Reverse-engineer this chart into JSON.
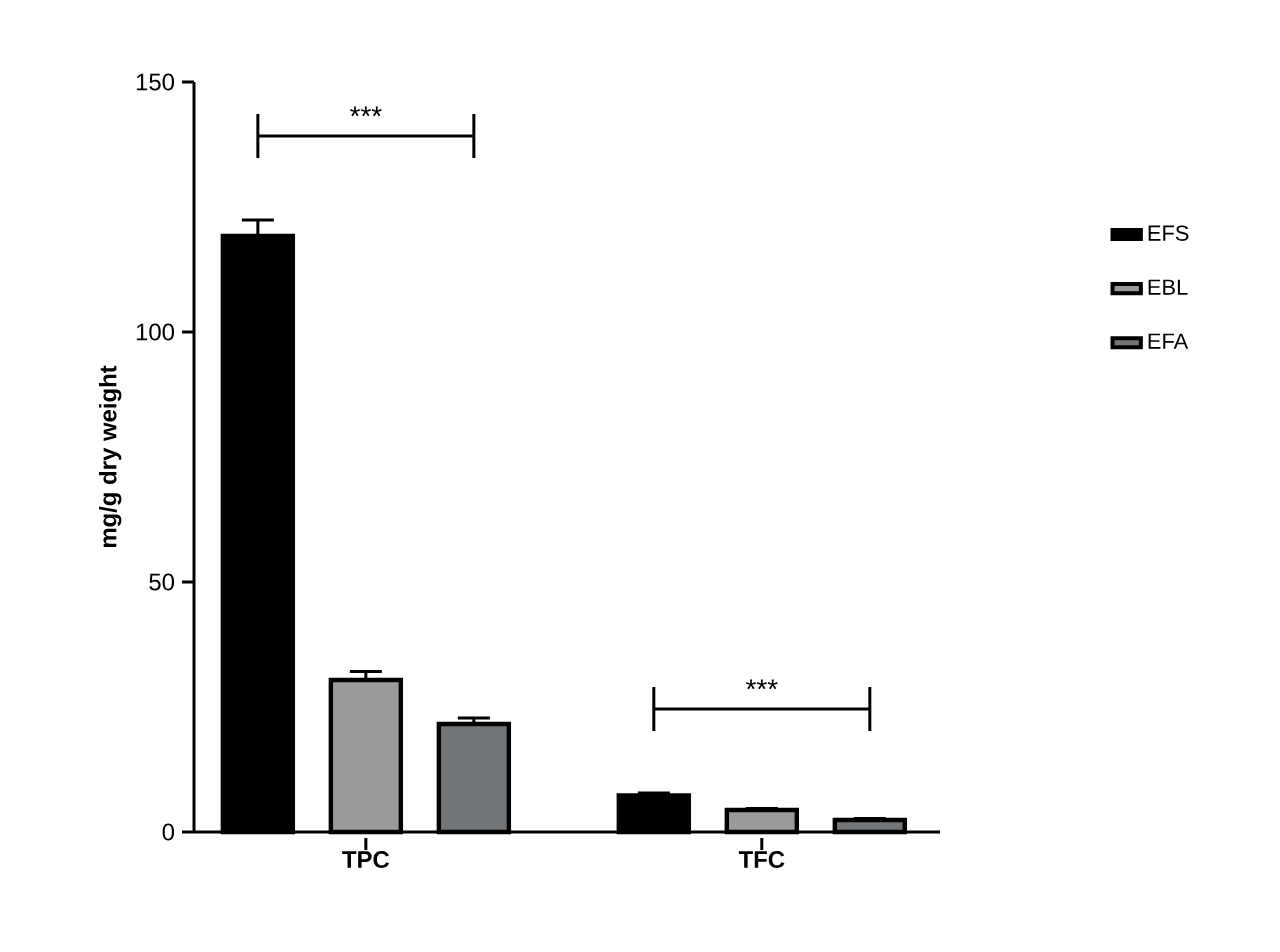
{
  "chart_data": {
    "type": "bar",
    "ylabel": "mg/g dry weight",
    "categories": [
      "TPC",
      "TFC"
    ],
    "series": [
      {
        "name": "EFS",
        "color": "#000000",
        "values": [
          119.2,
          7.3
        ],
        "errors": [
          [
            119.2,
            122.4
          ],
          [
            7.3,
            7.8
          ]
        ]
      },
      {
        "name": "EBL",
        "color": "#999a9c",
        "values": [
          30.4,
          4.4
        ],
        "errors": [
          [
            30.4,
            32.1
          ],
          [
            4.4,
            4.7
          ]
        ]
      },
      {
        "name": "EFA",
        "color": "#737678",
        "values": [
          21.6,
          2.4
        ],
        "errors": [
          [
            21.6,
            22.8
          ],
          [
            2.4,
            2.7
          ]
        ]
      }
    ],
    "ylim": [
      0,
      150
    ],
    "yticks": [
      0,
      50,
      100,
      150
    ],
    "legend": "right",
    "annotations": [
      "***",
      "***"
    ]
  }
}
